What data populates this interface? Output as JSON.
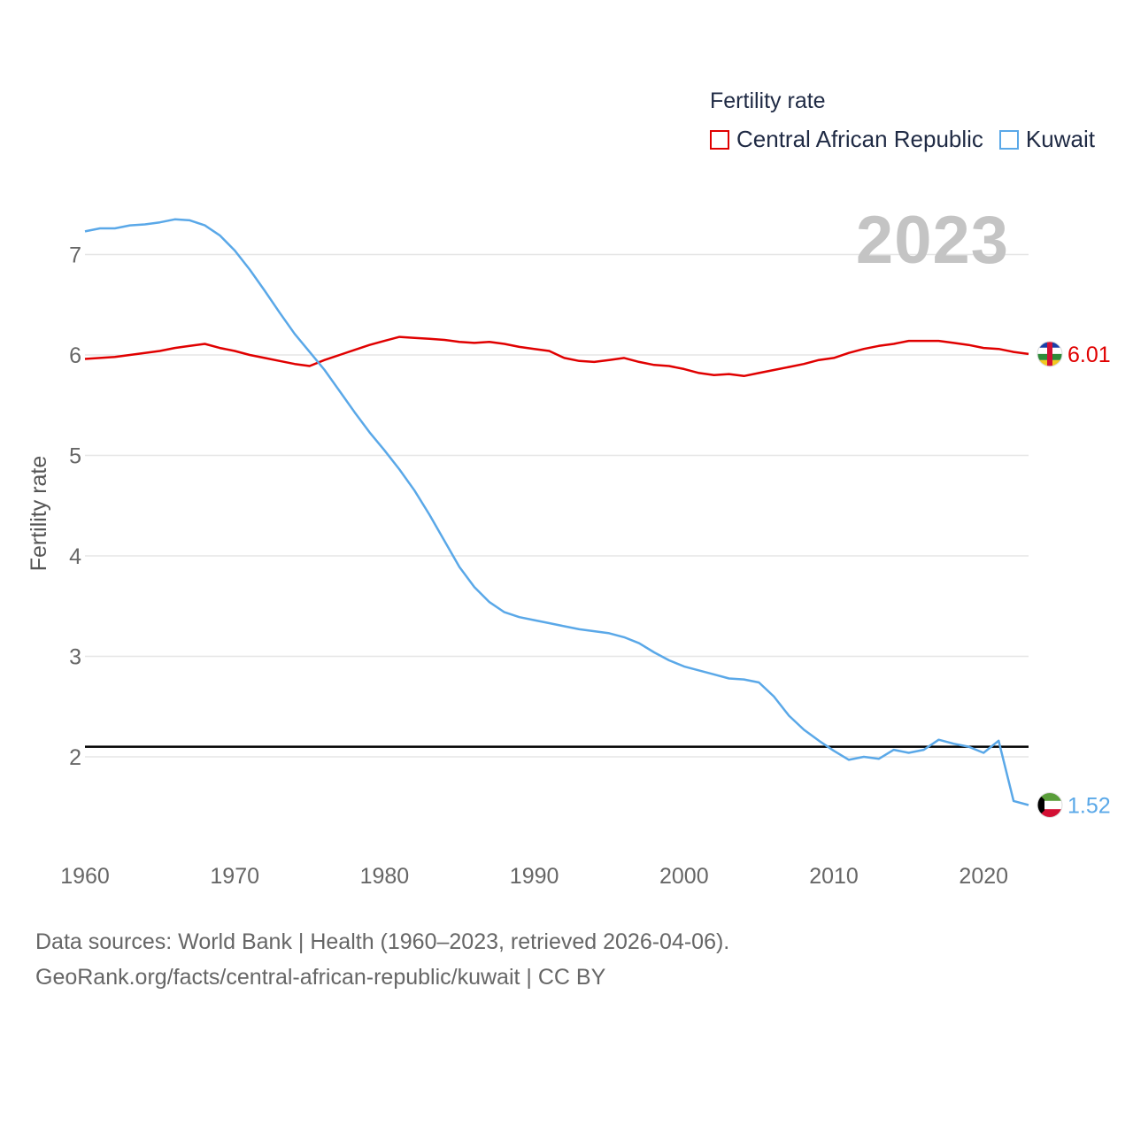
{
  "legend": {
    "title": "Fertility rate",
    "items": [
      {
        "label": "Central African Republic",
        "color": "#e00000"
      },
      {
        "label": "Kuwait",
        "color": "#5aa8e8"
      }
    ]
  },
  "year_label": "2023",
  "footer": {
    "line1": "Data sources: World Bank | Health (1960–2023, retrieved 2026-04-06).",
    "line2": "GeoRank.org/facts/central-african-republic/kuwait | CC BY"
  },
  "chart_data": {
    "type": "line",
    "title": "Fertility rate",
    "xlabel": "",
    "ylabel": "Fertility rate",
    "xlim": [
      1960,
      2023
    ],
    "ylim": [
      1.3,
      7.4
    ],
    "x_ticks": [
      1960,
      1970,
      1980,
      1990,
      2000,
      2010,
      2020
    ],
    "y_ticks": [
      2,
      3,
      4,
      5,
      6,
      7
    ],
    "reference_line": 2.1,
    "x": [
      1960,
      1961,
      1962,
      1963,
      1964,
      1965,
      1966,
      1967,
      1968,
      1969,
      1970,
      1971,
      1972,
      1973,
      1974,
      1975,
      1976,
      1977,
      1978,
      1979,
      1980,
      1981,
      1982,
      1983,
      1984,
      1985,
      1986,
      1987,
      1988,
      1989,
      1990,
      1991,
      1992,
      1993,
      1994,
      1995,
      1996,
      1997,
      1998,
      1999,
      2000,
      2001,
      2002,
      2003,
      2004,
      2005,
      2006,
      2007,
      2008,
      2009,
      2010,
      2011,
      2012,
      2013,
      2014,
      2015,
      2016,
      2017,
      2018,
      2019,
      2020,
      2021,
      2022,
      2023
    ],
    "series": [
      {
        "name": "Central African Republic",
        "color": "#e00000",
        "end_label": "6.01",
        "values": [
          5.96,
          5.97,
          5.98,
          6.0,
          6.02,
          6.04,
          6.07,
          6.09,
          6.11,
          6.07,
          6.04,
          6.0,
          5.97,
          5.94,
          5.91,
          5.89,
          5.95,
          6.0,
          6.05,
          6.1,
          6.14,
          6.18,
          6.17,
          6.16,
          6.15,
          6.13,
          6.12,
          6.13,
          6.11,
          6.08,
          6.06,
          6.04,
          5.97,
          5.94,
          5.93,
          5.95,
          5.97,
          5.93,
          5.9,
          5.89,
          5.86,
          5.82,
          5.8,
          5.81,
          5.79,
          5.82,
          5.85,
          5.88,
          5.91,
          5.95,
          5.97,
          6.02,
          6.06,
          6.09,
          6.11,
          6.14,
          6.14,
          6.14,
          6.12,
          6.1,
          6.07,
          6.06,
          6.03,
          6.01
        ]
      },
      {
        "name": "Kuwait",
        "color": "#5aa8e8",
        "end_label": "1.52",
        "values": [
          7.23,
          7.26,
          7.26,
          7.29,
          7.3,
          7.32,
          7.35,
          7.34,
          7.29,
          7.19,
          7.04,
          6.85,
          6.64,
          6.42,
          6.21,
          6.03,
          5.85,
          5.64,
          5.43,
          5.23,
          5.05,
          4.86,
          4.65,
          4.41,
          4.15,
          3.89,
          3.69,
          3.54,
          3.44,
          3.39,
          3.36,
          3.33,
          3.3,
          3.27,
          3.25,
          3.23,
          3.19,
          3.13,
          3.04,
          2.96,
          2.9,
          2.86,
          2.82,
          2.78,
          2.77,
          2.74,
          2.6,
          2.41,
          2.27,
          2.16,
          2.06,
          1.97,
          2.0,
          1.98,
          2.07,
          2.04,
          2.07,
          2.17,
          2.13,
          2.1,
          2.04,
          2.16,
          1.56,
          1.52
        ]
      }
    ]
  }
}
